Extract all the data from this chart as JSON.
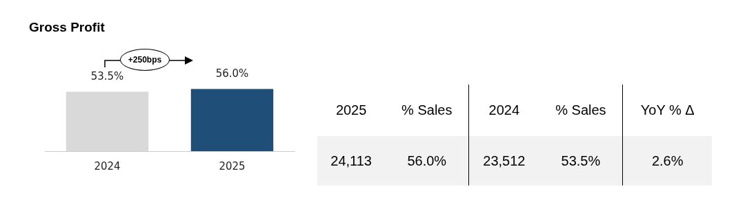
{
  "chart_data": [
    {
      "type": "bar",
      "title": "Gross Profit",
      "categories": [
        "2024",
        "2025"
      ],
      "values": [
        53.5,
        56.0
      ],
      "colors": [
        "#d9d9d9",
        "#1f4e79"
      ],
      "tick_labels": "x",
      "value_labels": [
        "53.5%",
        "56.0%"
      ],
      "annotations": [
        "+250bps"
      ]
    },
    {
      "type": "other",
      "categories": [
        "2025",
        "% Sales",
        "2024",
        "% Sales",
        "YoY % Δ"
      ],
      "cell_labels": [
        [
          "24,113",
          "56.0%",
          "23,512",
          "53.5%",
          "2.6%"
        ]
      ]
    }
  ]
}
